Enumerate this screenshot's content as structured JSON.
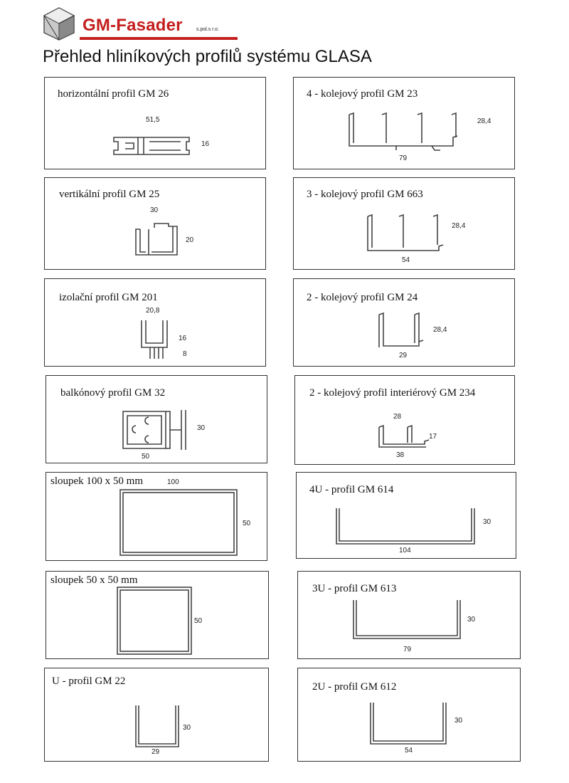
{
  "header": {
    "brand": "GM-Fasader",
    "brand_suffix": "s.pol.s r.o.",
    "title": "Přehled hliníkových profilů systému GLASA"
  },
  "profiles": [
    {
      "title": "horizontální profil GM 26",
      "dims": [
        "51,5",
        "16"
      ]
    },
    {
      "title": "4 - kolejový profil GM 23",
      "dims": [
        "28,4",
        "79"
      ]
    },
    {
      "title": "vertikální profil GM 25",
      "dims": [
        "30",
        "20"
      ]
    },
    {
      "title": "3 - kolejový profil GM 663",
      "dims": [
        "28,4",
        "54"
      ]
    },
    {
      "title": "izolační profil GM 201",
      "dims": [
        "20,8",
        "16",
        "8"
      ]
    },
    {
      "title": "2 - kolejový profil GM 24",
      "dims": [
        "28,4",
        "29"
      ]
    },
    {
      "title": "balkónový profil GM 32",
      "dims": [
        "30",
        "50"
      ]
    },
    {
      "title": "2 - kolejový profil interiérový GM 234",
      "dims": [
        "28",
        "17",
        "38"
      ]
    },
    {
      "title": "sloupek 100 x 50 mm",
      "dims": [
        "100",
        "50"
      ]
    },
    {
      "title": "4U - profil GM 614",
      "dims": [
        "30",
        "104"
      ]
    },
    {
      "title": "sloupek  50 x 50 mm",
      "dims": [
        "50"
      ]
    },
    {
      "title": "3U - profil GM 613",
      "dims": [
        "30",
        "79"
      ]
    },
    {
      "title": "U - profil GM 22",
      "dims": [
        "30",
        "29"
      ]
    },
    {
      "title": "2U - profil GM 612",
      "dims": [
        "30",
        "54"
      ]
    }
  ]
}
